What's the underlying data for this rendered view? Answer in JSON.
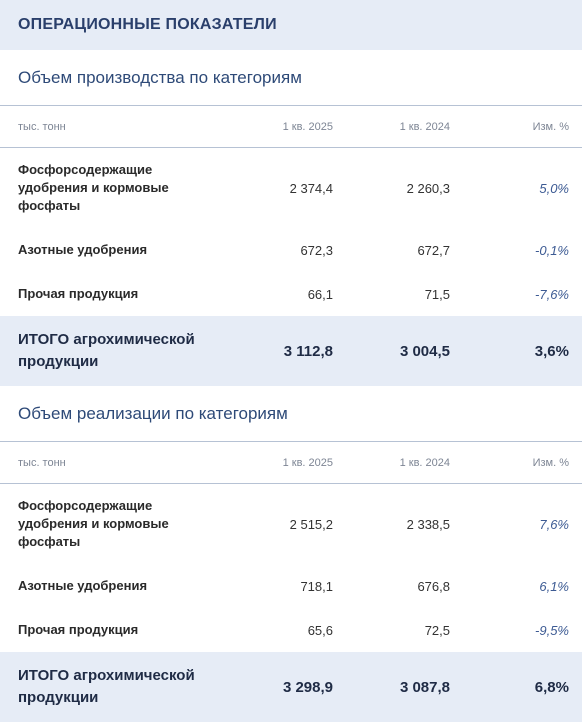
{
  "header": {
    "title": "ОПЕРАЦИОННЫЕ ПОКАЗАТЕЛИ"
  },
  "sections": [
    {
      "title": "Объем производства по категориям",
      "columns": [
        "тыс. тонн",
        "1 кв. 2025",
        "1 кв. 2024",
        "Изм. %"
      ],
      "rows": [
        {
          "name": "Фосфорсодержащие удобрения и кормовые фосфаты",
          "v1": "2 374,4",
          "v2": "2 260,3",
          "change": "5,0%"
        },
        {
          "name": "Азотные удобрения",
          "v1": "672,3",
          "v2": "672,7",
          "change": "-0,1%"
        },
        {
          "name": "Прочая продукция",
          "v1": "66,1",
          "v2": "71,5",
          "change": "-7,6%"
        }
      ],
      "total": {
        "name": "ИТОГО агрохимической продукции",
        "v1": "3 112,8",
        "v2": "3 004,5",
        "change": "3,6%"
      }
    },
    {
      "title": "Объем реализации по категориям",
      "columns": [
        "тыс. тонн",
        "1 кв. 2025",
        "1 кв. 2024",
        "Изм. %"
      ],
      "rows": [
        {
          "name": "Фосфорсодержащие удобрения и кормовые фосфаты",
          "v1": "2 515,2",
          "v2": "2 338,5",
          "change": "7,6%"
        },
        {
          "name": "Азотные удобрения",
          "v1": "718,1",
          "v2": "676,8",
          "change": "6,1%"
        },
        {
          "name": "Прочая продукция",
          "v1": "65,6",
          "v2": "72,5",
          "change": "-9,5%"
        }
      ],
      "total": {
        "name": "ИТОГО агрохимической продукции",
        "v1": "3 298,9",
        "v2": "3 087,8",
        "change": "6,8%"
      }
    }
  ]
}
